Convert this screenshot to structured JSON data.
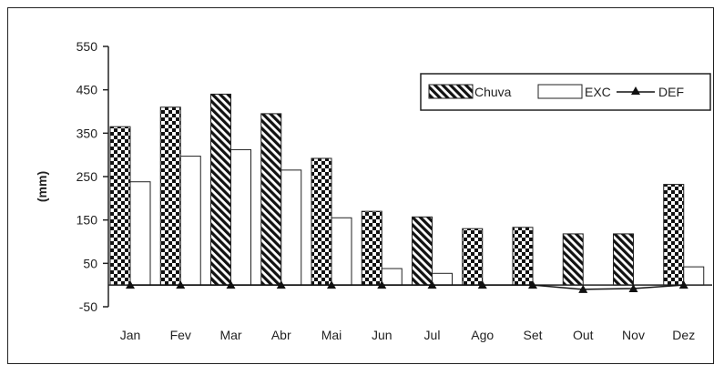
{
  "chart_data": {
    "type": "bar",
    "categories": [
      "Jan",
      "Fev",
      "Mar",
      "Abr",
      "Mai",
      "Jun",
      "Jul",
      "Ago",
      "Set",
      "Out",
      "Nov",
      "Dez"
    ],
    "series": [
      {
        "name": "Chuva",
        "kind": "bar",
        "values": [
          365,
          410,
          440,
          395,
          292,
          170,
          157,
          130,
          133,
          118,
          118,
          232
        ]
      },
      {
        "name": "EXC",
        "kind": "bar",
        "values": [
          238,
          297,
          312,
          265,
          155,
          38,
          27,
          0,
          0,
          0,
          0,
          42
        ]
      },
      {
        "name": "DEF",
        "kind": "line",
        "marker": "triangle",
        "values": [
          0,
          0,
          0,
          0,
          0,
          0,
          0,
          0,
          0,
          -10,
          -8,
          0
        ]
      }
    ],
    "chuva_patterns": [
      "checker",
      "checker",
      "diagonal",
      "diagonal",
      "checker",
      "checker",
      "diagonal",
      "checker",
      "checker",
      "diagonal",
      "diagonal",
      "checker"
    ],
    "xlabel": "",
    "ylabel": "(mm)",
    "ylim": [
      -50,
      550
    ],
    "yticks": [
      550,
      450,
      350,
      250,
      150,
      50,
      -50
    ],
    "legend_position": "top-right",
    "grid": false
  }
}
